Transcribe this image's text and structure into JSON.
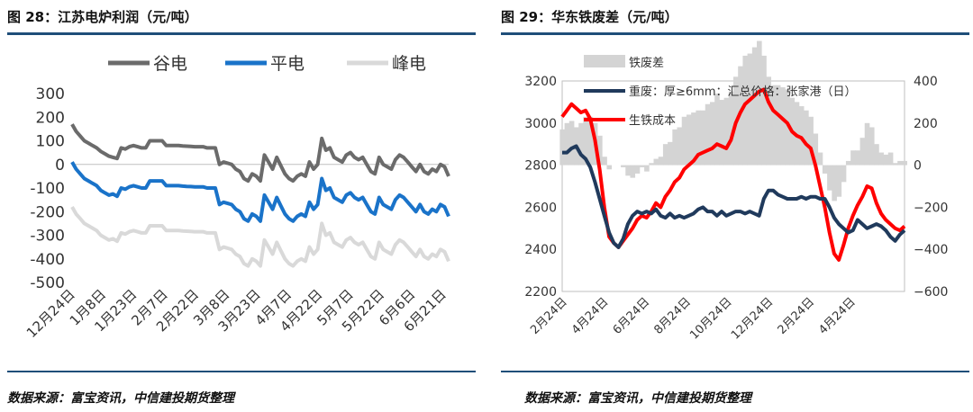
{
  "left": {
    "title": "图 28：江苏电炉利润（元/吨）",
    "source": "数据来源：富宝资讯，中信建投期货整理",
    "chart_data": {
      "type": "line",
      "title": "",
      "xlabel": "",
      "ylabel": "",
      "ylim": [
        -500,
        300
      ],
      "yticks": [
        300,
        200,
        100,
        0,
        -100,
        -200,
        -300,
        -400,
        -500
      ],
      "xticks": [
        "12月24日",
        "1月8日",
        "1月23日",
        "2月7日",
        "2月22日",
        "3月8日",
        "3月23日",
        "4月7日",
        "4月22日",
        "5月7日",
        "5月22日",
        "6月6日",
        "6月21日"
      ],
      "legend_position": "top",
      "colors": {
        "谷电": "#6b6b6b",
        "平电": "#1a73c9",
        "峰电": "#d9d9d9"
      },
      "series": [
        {
          "name": "谷电",
          "values": [
            170,
            140,
            120,
            100,
            90,
            80,
            70,
            55,
            45,
            35,
            30,
            25,
            70,
            65,
            75,
            80,
            75,
            70,
            70,
            100,
            100,
            100,
            100,
            80,
            80,
            80,
            80,
            78,
            77,
            76,
            75,
            75,
            75,
            70,
            70,
            70,
            0,
            10,
            5,
            0,
            -20,
            -30,
            -60,
            -70,
            -40,
            -50,
            -70,
            40,
            10,
            -20,
            30,
            -5,
            -40,
            -60,
            -70,
            -50,
            -40,
            -50,
            10,
            -20,
            0,
            110,
            60,
            70,
            30,
            20,
            10,
            40,
            50,
            30,
            20,
            30,
            0,
            -30,
            -40,
            30,
            0,
            -10,
            -20,
            20,
            40,
            30,
            10,
            -10,
            -30,
            0,
            -30,
            -40,
            -20,
            -30,
            0,
            -10,
            -50
          ]
        },
        {
          "name": "平电",
          "values": [
            10,
            -20,
            -40,
            -60,
            -70,
            -80,
            -90,
            -110,
            -120,
            -130,
            -125,
            -135,
            -100,
            -105,
            -95,
            -90,
            -95,
            -100,
            -100,
            -70,
            -70,
            -70,
            -70,
            -90,
            -90,
            -90,
            -90,
            -92,
            -93,
            -94,
            -95,
            -95,
            -95,
            -100,
            -100,
            -100,
            -170,
            -160,
            -165,
            -170,
            -190,
            -200,
            -230,
            -240,
            -210,
            -220,
            -240,
            -130,
            -160,
            -190,
            -140,
            -175,
            -210,
            -230,
            -240,
            -220,
            -210,
            -220,
            -160,
            -190,
            -170,
            -60,
            -110,
            -100,
            -140,
            -150,
            -160,
            -130,
            -120,
            -140,
            -150,
            -140,
            -170,
            -200,
            -210,
            -140,
            -170,
            -180,
            -190,
            -150,
            -130,
            -140,
            -160,
            -180,
            -200,
            -170,
            -200,
            -210,
            -190,
            -200,
            -170,
            -180,
            -220
          ]
        },
        {
          "name": "峰电",
          "values": [
            -180,
            -210,
            -230,
            -250,
            -260,
            -270,
            -280,
            -300,
            -310,
            -320,
            -315,
            -325,
            -290,
            -295,
            -285,
            -280,
            -285,
            -290,
            -290,
            -260,
            -260,
            -260,
            -260,
            -280,
            -280,
            -280,
            -280,
            -282,
            -283,
            -284,
            -285,
            -285,
            -285,
            -290,
            -290,
            -290,
            -360,
            -350,
            -355,
            -360,
            -380,
            -390,
            -420,
            -430,
            -400,
            -410,
            -430,
            -320,
            -350,
            -380,
            -330,
            -365,
            -400,
            -420,
            -430,
            -410,
            -400,
            -410,
            -350,
            -380,
            -360,
            -250,
            -300,
            -290,
            -330,
            -340,
            -350,
            -320,
            -310,
            -330,
            -340,
            -330,
            -360,
            -390,
            -400,
            -330,
            -360,
            -370,
            -380,
            -340,
            -320,
            -330,
            -350,
            -370,
            -390,
            -360,
            -390,
            -400,
            -380,
            -390,
            -360,
            -370,
            -410
          ]
        }
      ]
    }
  },
  "right": {
    "title": "图 29：华东铁废差（元/吨）",
    "source": "数据来源：富宝资讯，中信建投期货整理",
    "chart_data": {
      "type": "line",
      "title": "",
      "xlabel": "",
      "ylabel": "",
      "ylim": [
        2200,
        3200
      ],
      "yticks": [
        3200,
        3000,
        2800,
        2600,
        2400,
        2200
      ],
      "y2lim": [
        -600,
        400
      ],
      "y2ticks": [
        400,
        200,
        0,
        -200,
        -400,
        -600
      ],
      "xticks": [
        "2月24日",
        "4月24日",
        "6月24日",
        "8月24日",
        "10月24日",
        "12月24日",
        "2月24日",
        "4月24日"
      ],
      "legend_position": "top-left",
      "colors": {
        "铁废差": "#d4d4d4",
        "重废：厚≥6mm：汇总价格：张家港（日）": "#203a5c",
        "生铁成本": "#ff0000"
      },
      "series": [
        {
          "name": "重废：厚≥6mm：汇总价格：张家港（日）",
          "axis": "left",
          "values": [
            2860,
            2860,
            2880,
            2890,
            2850,
            2830,
            2790,
            2720,
            2640,
            2560,
            2480,
            2430,
            2410,
            2450,
            2520,
            2560,
            2580,
            2570,
            2580,
            2570,
            2590,
            2560,
            2550,
            2570,
            2550,
            2560,
            2550,
            2560,
            2570,
            2590,
            2600,
            2580,
            2580,
            2560,
            2580,
            2560,
            2570,
            2580,
            2580,
            2570,
            2580,
            2570,
            2560,
            2640,
            2680,
            2680,
            2660,
            2650,
            2640,
            2640,
            2640,
            2650,
            2640,
            2650,
            2650,
            2640,
            2640,
            2600,
            2550,
            2520,
            2500,
            2480,
            2490,
            2540,
            2520,
            2500,
            2510,
            2520,
            2510,
            2490,
            2460,
            2440,
            2470,
            2490
          ]
        },
        {
          "name": "生铁成本",
          "axis": "left",
          "values": [
            3030,
            3060,
            3090,
            3070,
            3050,
            3060,
            3020,
            2920,
            2780,
            2600,
            2460,
            2430,
            2410,
            2440,
            2470,
            2500,
            2540,
            2560,
            2550,
            2580,
            2620,
            2600,
            2650,
            2680,
            2720,
            2740,
            2780,
            2800,
            2820,
            2850,
            2860,
            2870,
            2880,
            2900,
            2890,
            2880,
            2920,
            3000,
            3050,
            3090,
            3110,
            3130,
            3150,
            3160,
            3100,
            3060,
            3040,
            3020,
            3000,
            2960,
            2940,
            2930,
            2900,
            2880,
            2800,
            2700,
            2600,
            2480,
            2380,
            2350,
            2420,
            2500,
            2560,
            2610,
            2650,
            2700,
            2690,
            2620,
            2570,
            2540,
            2520,
            2500,
            2490,
            2510
          ]
        },
        {
          "name": "铁废差",
          "axis": "right",
          "values": [
            170,
            200,
            210,
            180,
            200,
            230,
            230,
            200,
            140,
            40,
            -20,
            0,
            0,
            -10,
            -50,
            -60,
            -40,
            -10,
            -30,
            10,
            30,
            40,
            100,
            110,
            170,
            180,
            230,
            240,
            250,
            260,
            260,
            290,
            300,
            340,
            310,
            320,
            350,
            420,
            470,
            520,
            530,
            560,
            590,
            520,
            420,
            380,
            380,
            370,
            360,
            320,
            300,
            280,
            260,
            230,
            150,
            60,
            -40,
            -120,
            -170,
            -150,
            -80,
            20,
            70,
            70,
            130,
            200,
            180,
            100,
            60,
            50,
            60,
            10,
            20,
            20
          ]
        }
      ]
    }
  }
}
